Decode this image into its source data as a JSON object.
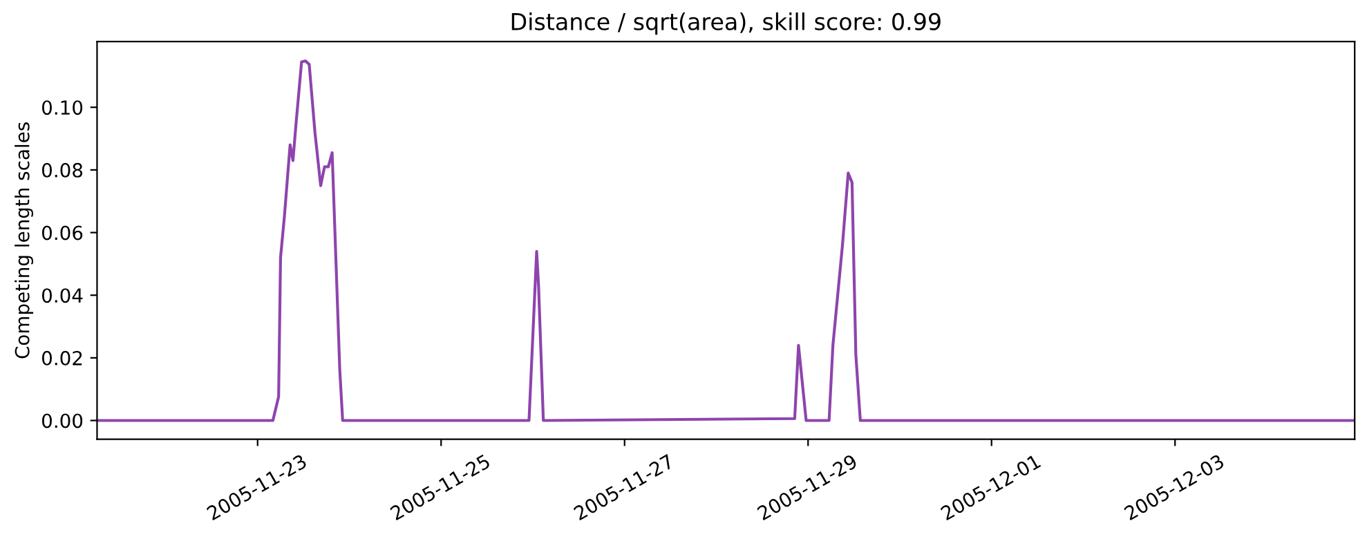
{
  "chart_data": {
    "type": "line",
    "title": "Distance / sqrt(area), skill score: 0.99",
    "ylabel": "Competing length scales",
    "x": [
      "2005-11-21T06:00",
      "2005-11-23T04:00",
      "2005-11-23T05:30",
      "2005-11-23T06:00",
      "2005-11-23T07:00",
      "2005-11-23T08:30",
      "2005-11-23T09:15",
      "2005-11-23T10:00",
      "2005-11-23T11:30",
      "2005-11-23T12:30",
      "2005-11-23T13:30",
      "2005-11-23T15:00",
      "2005-11-23T16:30",
      "2005-11-23T17:30",
      "2005-11-23T18:30",
      "2005-11-23T19:30",
      "2005-11-23T21:30",
      "2005-11-23T22:15",
      "2005-11-25T23:00",
      "2005-11-26T01:00",
      "2005-11-26T01:30",
      "2005-11-26T02:45",
      "2005-11-28T20:30",
      "2005-11-28T21:30",
      "2005-11-28T23:30",
      "2005-11-29T05:30",
      "2005-11-29T06:30",
      "2005-11-29T09:00",
      "2005-11-29T10:30",
      "2005-11-29T11:30",
      "2005-11-29T12:30",
      "2005-11-29T13:40",
      "2005-12-04T23:00"
    ],
    "series": [
      {
        "color": "#8e44ad",
        "values": [
          0,
          0,
          0.0076,
          0.052,
          0.065,
          0.088,
          0.083,
          0.094,
          0.1145,
          0.1148,
          0.1137,
          0.092,
          0.075,
          0.081,
          0.081,
          0.0855,
          0.016,
          0,
          0,
          0.054,
          0.043,
          0,
          0.0006,
          0.024,
          0,
          0,
          0.024,
          0.056,
          0.079,
          0.076,
          0.021,
          0,
          0
        ]
      }
    ],
    "xlim": [
      "2005-11-21T06:00",
      "2005-12-04T23:00"
    ],
    "xticks": [
      {
        "value": "2005-11-23",
        "label": "2005-11-23"
      },
      {
        "value": "2005-11-25",
        "label": "2005-11-25"
      },
      {
        "value": "2005-11-27",
        "label": "2005-11-27"
      },
      {
        "value": "2005-11-29",
        "label": "2005-11-29"
      },
      {
        "value": "2005-12-01",
        "label": "2005-12-01"
      },
      {
        "value": "2005-12-03",
        "label": "2005-12-03"
      }
    ],
    "ylim": [
      -0.006,
      0.121
    ],
    "yticks": [
      {
        "value": 0,
        "label": "0.00"
      },
      {
        "value": 0.02,
        "label": "0.02"
      },
      {
        "value": 0.04,
        "label": "0.04"
      },
      {
        "value": 0.06,
        "label": "0.06"
      },
      {
        "value": 0.08,
        "label": "0.08"
      },
      {
        "value": 0.1,
        "label": "0.10"
      }
    ],
    "grid": false,
    "marker": "none",
    "line_style": "solid"
  }
}
